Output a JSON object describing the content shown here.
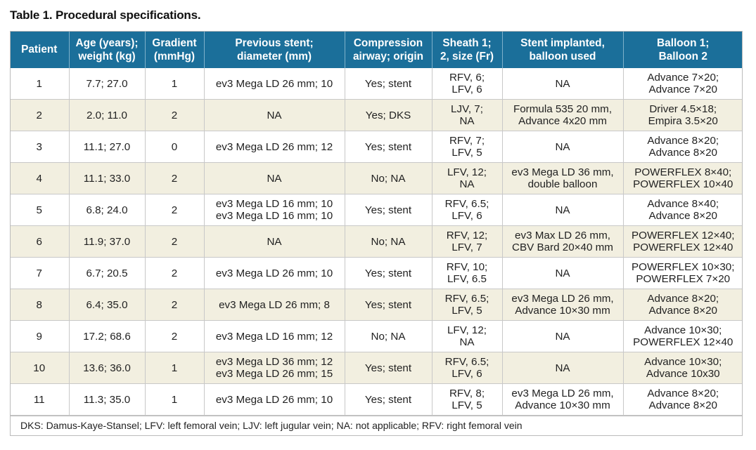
{
  "caption": "Table 1. Procedural specifications.",
  "headers": [
    [
      "Patient",
      ""
    ],
    [
      "Age (years);",
      "weight (kg)"
    ],
    [
      "Gradient",
      "(mmHg)"
    ],
    [
      "Previous stent;",
      "diameter (mm)"
    ],
    [
      "Compression",
      "airway; origin"
    ],
    [
      "Sheath 1;",
      "2, size (Fr)"
    ],
    [
      "Stent implanted,",
      "balloon used"
    ],
    [
      "Balloon 1;",
      "Balloon 2"
    ]
  ],
  "rows": [
    [
      [
        "1"
      ],
      [
        "7.7; 27.0"
      ],
      [
        "1"
      ],
      [
        "ev3 Mega LD 26 mm; 10"
      ],
      [
        "Yes; stent"
      ],
      [
        "RFV, 6;",
        "LFV, 6"
      ],
      [
        "NA"
      ],
      [
        "Advance 7×20;",
        "Advance 7×20"
      ]
    ],
    [
      [
        "2"
      ],
      [
        "2.0; 11.0"
      ],
      [
        "2"
      ],
      [
        "NA"
      ],
      [
        "Yes; DKS"
      ],
      [
        "LJV, 7;",
        "NA"
      ],
      [
        "Formula 535 20 mm,",
        "Advance 4x20 mm"
      ],
      [
        "Driver 4.5×18;",
        "Empira 3.5×20"
      ]
    ],
    [
      [
        "3"
      ],
      [
        "11.1; 27.0"
      ],
      [
        "0"
      ],
      [
        "ev3 Mega LD 26 mm; 12"
      ],
      [
        "Yes; stent"
      ],
      [
        "RFV, 7;",
        "LFV, 5"
      ],
      [
        "NA"
      ],
      [
        "Advance 8×20;",
        "Advance 8×20"
      ]
    ],
    [
      [
        "4"
      ],
      [
        "11.1; 33.0"
      ],
      [
        "2"
      ],
      [
        "NA"
      ],
      [
        "No; NA"
      ],
      [
        "LFV, 12;",
        "NA"
      ],
      [
        "ev3 Mega LD 36 mm,",
        "double balloon"
      ],
      [
        "POWERFLEX 8×40;",
        "POWERFLEX 10×40"
      ]
    ],
    [
      [
        "5"
      ],
      [
        "6.8; 24.0"
      ],
      [
        "2"
      ],
      [
        "ev3 Mega LD 16 mm; 10",
        "ev3 Mega LD 16 mm; 10"
      ],
      [
        "Yes; stent"
      ],
      [
        "RFV, 6.5;",
        "LFV, 6"
      ],
      [
        "NA"
      ],
      [
        "Advance 8×40;",
        "Advance 8×20"
      ]
    ],
    [
      [
        "6"
      ],
      [
        "11.9; 37.0"
      ],
      [
        "2"
      ],
      [
        "NA"
      ],
      [
        "No; NA"
      ],
      [
        "RFV, 12;",
        "LFV, 7"
      ],
      [
        "ev3 Max LD 26 mm,",
        "CBV Bard 20×40 mm"
      ],
      [
        "POWERFLEX 12×40;",
        "POWERFLEX 12×40"
      ]
    ],
    [
      [
        "7"
      ],
      [
        "6.7; 20.5"
      ],
      [
        "2"
      ],
      [
        "ev3 Mega LD 26 mm; 10"
      ],
      [
        "Yes; stent"
      ],
      [
        "RFV, 10;",
        "LFV, 6.5"
      ],
      [
        "NA"
      ],
      [
        "POWERFLEX 10×30;",
        "POWERFLEX 7×20"
      ]
    ],
    [
      [
        "8"
      ],
      [
        "6.4; 35.0"
      ],
      [
        "2"
      ],
      [
        "ev3 Mega LD 26 mm; 8"
      ],
      [
        "Yes; stent"
      ],
      [
        "RFV, 6.5;",
        "LFV, 5"
      ],
      [
        "ev3 Mega LD 26 mm,",
        "Advance 10×30 mm"
      ],
      [
        "Advance 8×20;",
        "Advance 8×20"
      ]
    ],
    [
      [
        "9"
      ],
      [
        "17.2; 68.6"
      ],
      [
        "2"
      ],
      [
        "ev3 Mega LD 16 mm; 12"
      ],
      [
        "No; NA"
      ],
      [
        "LFV, 12;",
        "NA"
      ],
      [
        "NA"
      ],
      [
        "Advance 10×30;",
        "POWERFLEX 12×40"
      ]
    ],
    [
      [
        "10"
      ],
      [
        "13.6; 36.0"
      ],
      [
        "1"
      ],
      [
        "ev3 Mega LD 36 mm; 12",
        "ev3 Mega LD 26 mm; 15"
      ],
      [
        "Yes; stent"
      ],
      [
        "RFV, 6.5;",
        "LFV, 6"
      ],
      [
        "NA"
      ],
      [
        "Advance 10×30;",
        "Advance 10x30"
      ]
    ],
    [
      [
        "11"
      ],
      [
        "11.3; 35.0"
      ],
      [
        "1"
      ],
      [
        "ev3 Mega LD 26 mm; 10"
      ],
      [
        "Yes; stent"
      ],
      [
        "RFV, 8;",
        "LFV, 5"
      ],
      [
        "ev3 Mega LD 26 mm,",
        "Advance 10×30 mm"
      ],
      [
        "Advance 8×20;",
        "Advance 8×20"
      ]
    ]
  ],
  "footnote": "DKS: Damus-Kaye-Stansel; LFV: left femoral vein; LJV: left jugular vein; NA: not applicable; RFV: right femoral vein"
}
